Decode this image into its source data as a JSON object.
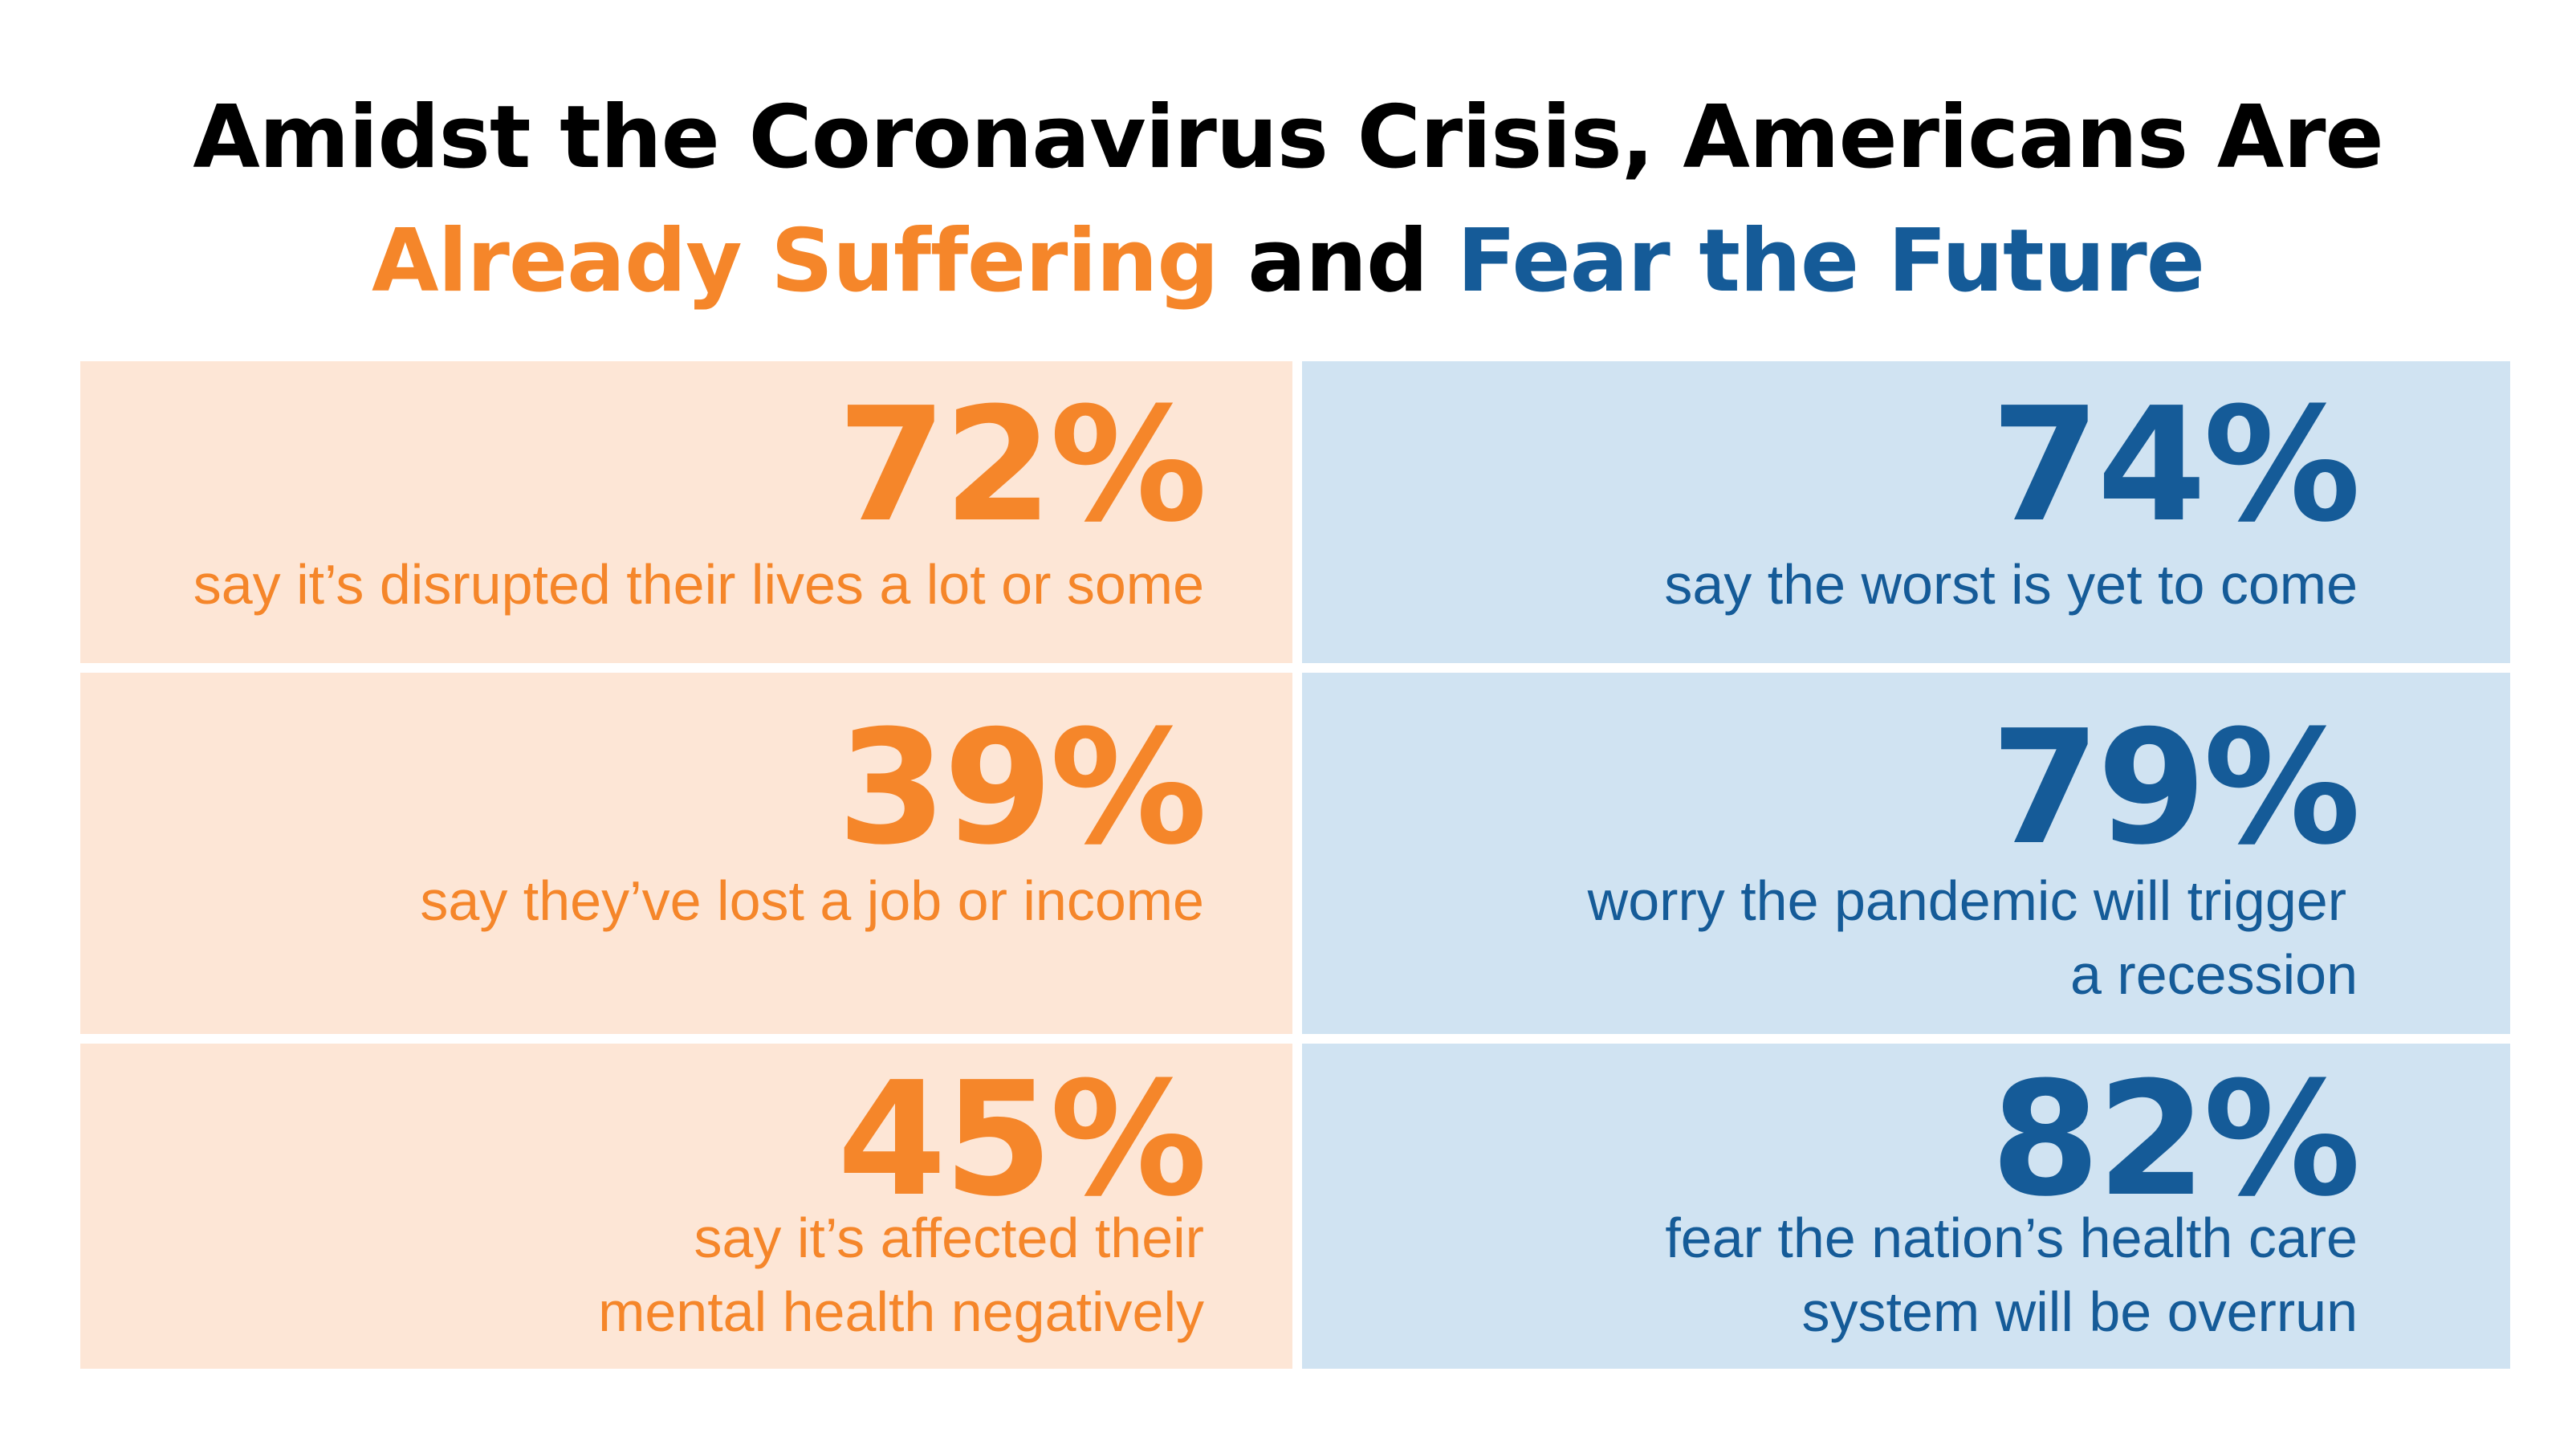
{
  "title": {
    "line1": "Amidst the Coronavirus Crisis, Americans Are",
    "highlight_orange": "Already Suffering",
    "connector": " and ",
    "highlight_blue": "Fear the Future"
  },
  "colors": {
    "orange": "#f5862a",
    "blue": "#155b98",
    "orange_background": "#fde6d6",
    "blue_background": "#d0e3f2"
  },
  "suffering": [
    {
      "percent": "72%",
      "lines": [
        "say it’s disrupted their lives a lot or some"
      ]
    },
    {
      "percent": "39%",
      "lines": [
        "say they’ve lost a job or income"
      ]
    },
    {
      "percent": "45%",
      "lines": [
        "say it’s affected their",
        "mental health negatively"
      ]
    }
  ],
  "fear": [
    {
      "percent": "74%",
      "lines": [
        "say the worst is yet to come"
      ]
    },
    {
      "percent": "79%",
      "lines": [
        "worry the pandemic will trigger",
        "a recession"
      ]
    },
    {
      "percent": "82%",
      "lines": [
        "fear the nation’s health care",
        "system will be overrun"
      ]
    }
  ]
}
